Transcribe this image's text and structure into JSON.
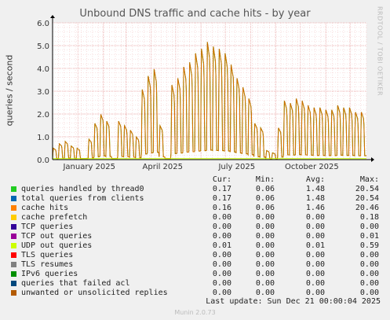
{
  "chart_data": {
    "type": "line",
    "title": "Unbound DNS traffic and cache hits - by year",
    "ylabel": "queries / second",
    "side_label": "RRDTOOL / TOBI OETIKER",
    "ylim": [
      0,
      6
    ],
    "yticks": [
      "0.0",
      "1.0",
      "2.0",
      "3.0",
      "4.0",
      "5.0",
      "6.0"
    ],
    "xticks": [
      "January 2025",
      "April 2025",
      "July 2025",
      "October 2025"
    ],
    "grid": true,
    "main_series": {
      "name": "total queries from clients",
      "x_start": "2024-12-01",
      "x_end": "2025-12-21",
      "week_peaks": [
        0.5,
        0.7,
        0.8,
        0.6,
        0.5,
        0.0,
        0.9,
        1.6,
        2.0,
        1.7,
        0.0,
        1.7,
        1.5,
        1.3,
        1.0,
        3.1,
        3.7,
        4.0,
        1.5,
        0.0,
        3.3,
        3.6,
        4.1,
        4.3,
        4.7,
        4.9,
        5.2,
        5.0,
        4.9,
        4.7,
        4.2,
        3.6,
        3.2,
        2.7,
        1.6,
        1.4,
        0.4,
        0.3,
        1.4,
        2.6,
        2.5,
        2.7,
        2.6,
        2.4,
        2.3,
        2.3,
        2.2,
        2.2,
        2.4,
        2.3,
        2.3,
        2.1,
        2.1
      ]
    },
    "legend_headers": [
      "Cur:",
      "Min:",
      "Avg:",
      "Max:"
    ],
    "legend": [
      {
        "name": "queries handled by thread0",
        "color": "#22cc22",
        "cur": "0.17",
        "min": "0.06",
        "avg": "1.48",
        "max": "20.54"
      },
      {
        "name": "total queries from clients",
        "color": "#0066b3",
        "cur": "0.17",
        "min": "0.06",
        "avg": "1.48",
        "max": "20.54"
      },
      {
        "name": "cache hits",
        "color": "#ff8000",
        "cur": "0.16",
        "min": "0.06",
        "avg": "1.46",
        "max": "20.46"
      },
      {
        "name": "cache prefetch",
        "color": "#ffcc00",
        "cur": "0.00",
        "min": "0.00",
        "avg": "0.00",
        "max": "0.18"
      },
      {
        "name": "TCP queries",
        "color": "#330099",
        "cur": "0.00",
        "min": "0.00",
        "avg": "0.00",
        "max": "0.00"
      },
      {
        "name": "TCP out queries",
        "color": "#990099",
        "cur": "0.00",
        "min": "0.00",
        "avg": "0.00",
        "max": "0.01"
      },
      {
        "name": "UDP out queries",
        "color": "#ccff00",
        "cur": "0.01",
        "min": "0.00",
        "avg": "0.01",
        "max": "0.59"
      },
      {
        "name": "TLS queries",
        "color": "#ff0000",
        "cur": "0.00",
        "min": "0.00",
        "avg": "0.00",
        "max": "0.00"
      },
      {
        "name": "TLS resumes",
        "color": "#808080",
        "cur": "0.00",
        "min": "0.00",
        "avg": "0.00",
        "max": "0.00"
      },
      {
        "name": "IPv6 queries",
        "color": "#008f00",
        "cur": "0.00",
        "min": "0.00",
        "avg": "0.00",
        "max": "0.00"
      },
      {
        "name": "queries that failed acl",
        "color": "#00487d",
        "cur": "0.00",
        "min": "0.00",
        "avg": "0.00",
        "max": "0.00"
      },
      {
        "name": "unwanted or unsolicited replies",
        "color": "#b35a00",
        "cur": "0.00",
        "min": "0.00",
        "avg": "0.00",
        "max": "0.00"
      }
    ]
  },
  "last_update": "Last update:  Sun Dec 21 00:00:04 2025",
  "footer": "Munin 2.0.73"
}
